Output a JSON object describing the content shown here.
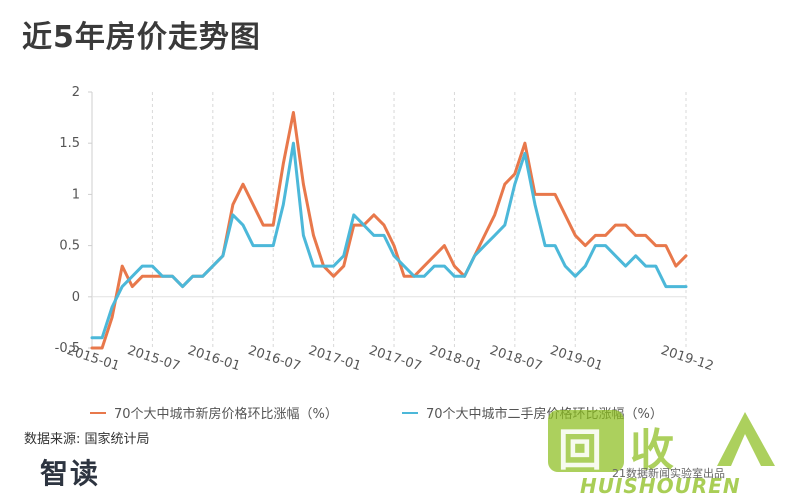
{
  "title": "近5年房价走势图",
  "source": "数据来源: 国家统计局",
  "credit": "21数据新闻实验室出品",
  "logo_left": "智读",
  "watermark": {
    "cn": "回收",
    "en": "HUISHOUREN"
  },
  "legend": [
    {
      "label": "70个大中城市新房价格环比涨幅（%）",
      "color": "#e8784b"
    },
    {
      "label": "70个大中城市二手房价格环比涨幅（%）",
      "color": "#4cb8d9"
    }
  ],
  "chart_data": {
    "type": "line",
    "title": "近5年房价走势图",
    "ylim": [
      -0.5,
      2
    ],
    "yticks": [
      -0.5,
      0,
      0.5,
      1,
      1.5,
      2
    ],
    "ytick_labels": [
      "-0.5",
      "0",
      "0.5",
      "1",
      "1.5",
      "2"
    ],
    "xticks": [
      {
        "label": "2015-01",
        "index": 0
      },
      {
        "label": "2015-07",
        "index": 6
      },
      {
        "label": "2016-01",
        "index": 12
      },
      {
        "label": "2016-07",
        "index": 18
      },
      {
        "label": "2017-01",
        "index": 24
      },
      {
        "label": "2017-07",
        "index": 30
      },
      {
        "label": "2018-01",
        "index": 36
      },
      {
        "label": "2018-07",
        "index": 42
      },
      {
        "label": "2019-01",
        "index": 48
      },
      {
        "label": "2019-12",
        "index": 59
      }
    ],
    "x_count": 60,
    "grid": "vertical-dashed",
    "legend_position": "bottom",
    "series": [
      {
        "name": "70个大中城市新房价格环比涨幅（%）",
        "color": "#e8784b",
        "values": [
          -0.5,
          -0.5,
          -0.2,
          0.3,
          0.1,
          0.2,
          0.2,
          0.2,
          0.2,
          0.1,
          0.2,
          0.2,
          0.3,
          0.4,
          0.9,
          1.1,
          0.9,
          0.7,
          0.7,
          1.3,
          1.8,
          1.1,
          0.6,
          0.3,
          0.2,
          0.3,
          0.7,
          0.7,
          0.8,
          0.7,
          0.5,
          0.2,
          0.2,
          0.3,
          0.4,
          0.5,
          0.3,
          0.2,
          0.4,
          0.6,
          0.8,
          1.1,
          1.2,
          1.5,
          1.0,
          1.0,
          1.0,
          0.8,
          0.6,
          0.5,
          0.6,
          0.6,
          0.7,
          0.7,
          0.6,
          0.6,
          0.5,
          0.5,
          0.3,
          0.4
        ]
      },
      {
        "name": "70个大中城市二手房价格环比涨幅（%）",
        "color": "#4cb8d9",
        "values": [
          -0.4,
          -0.4,
          -0.1,
          0.1,
          0.2,
          0.3,
          0.3,
          0.2,
          0.2,
          0.1,
          0.2,
          0.2,
          0.3,
          0.4,
          0.8,
          0.7,
          0.5,
          0.5,
          0.5,
          0.9,
          1.5,
          0.6,
          0.3,
          0.3,
          0.3,
          0.4,
          0.8,
          0.7,
          0.6,
          0.6,
          0.4,
          0.3,
          0.2,
          0.2,
          0.3,
          0.3,
          0.2,
          0.2,
          0.4,
          0.5,
          0.6,
          0.7,
          1.1,
          1.4,
          0.9,
          0.5,
          0.5,
          0.3,
          0.2,
          0.3,
          0.5,
          0.5,
          0.4,
          0.3,
          0.4,
          0.3,
          0.3,
          0.1,
          0.1,
          0.1
        ]
      }
    ]
  }
}
